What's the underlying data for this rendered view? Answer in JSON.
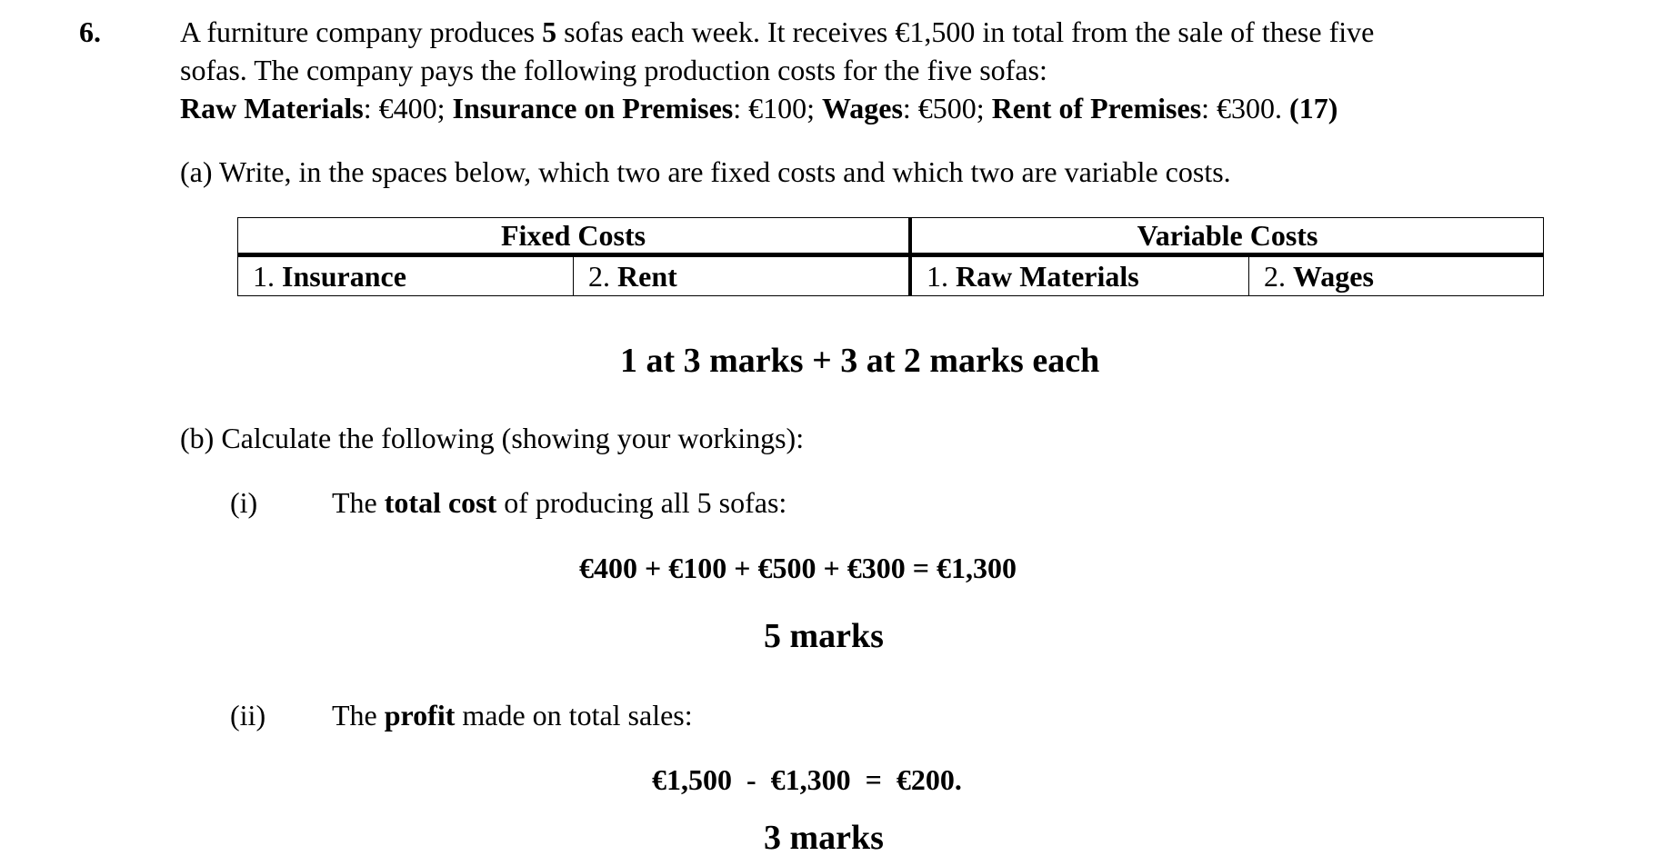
{
  "question": {
    "number": "6.",
    "intro_line1_parts": [
      "A furniture company produces ",
      "5",
      " sofas each week. It receives €1,500 in total from the sale of these five"
    ],
    "intro_line2": "sofas. The company pays the following production costs for the five sofas:",
    "costs": [
      {
        "label": "Raw Materials",
        "value": ": €400; "
      },
      {
        "label": "Insurance on Premises",
        "value": ": €100; "
      },
      {
        "label": "Wages",
        "value": ": €500; "
      },
      {
        "label": "Rent of Premises",
        "value": ": €300. "
      }
    ],
    "total_marks": "(17)"
  },
  "part_a": {
    "prompt": "(a) Write, in the spaces below, which two are fixed costs and which two are variable costs.",
    "table": {
      "headers": [
        "Fixed Costs",
        "Variable Costs"
      ],
      "cells": [
        {
          "num": "1. ",
          "answer": "Insurance"
        },
        {
          "num": "2. ",
          "answer": "Rent"
        },
        {
          "num": "1. ",
          "answer": "Raw Materials"
        },
        {
          "num": "2. ",
          "answer": "Wages"
        }
      ]
    },
    "marking": "1 at 3 marks + 3 at 2 marks each"
  },
  "part_b": {
    "prompt": "(b) Calculate the following (showing your workings):",
    "i": {
      "label": "(i)",
      "text_parts": [
        "The ",
        "total cost",
        " of producing all 5 sofas:"
      ],
      "working": "€400 + €100 + €500 + €300 = €1,300",
      "marks": "5 marks"
    },
    "ii": {
      "label": "(ii)",
      "text_parts": [
        "The ",
        "profit",
        " made on total sales:"
      ],
      "working": "€1,500  -  €1,300  =  €200.",
      "marks": "3 marks"
    }
  }
}
